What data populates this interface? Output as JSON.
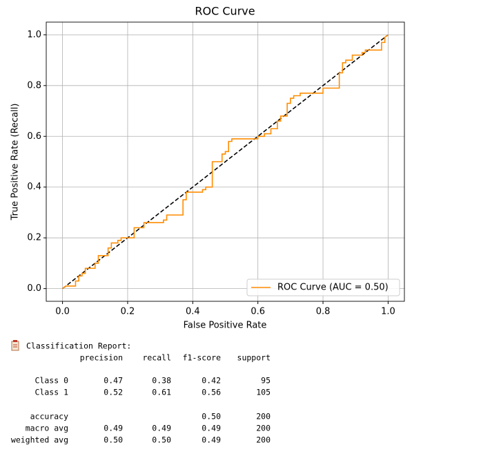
{
  "chart_data": {
    "type": "line",
    "title": "ROC Curve",
    "xlabel": "False Positive Rate",
    "ylabel": "True Positive Rate (Recall)",
    "xlim": [
      -0.05,
      1.05
    ],
    "ylim": [
      -0.05,
      1.05
    ],
    "xticks": [
      {
        "value": 0,
        "label": "0.0"
      },
      0.2,
      0.4,
      0.6,
      0.8,
      {
        "value": 1,
        "label": "1.0"
      }
    ],
    "yticks": [
      {
        "value": 0,
        "label": "0.0"
      },
      0.2,
      0.4,
      0.6,
      0.8,
      {
        "value": 1,
        "label": "1.0"
      }
    ],
    "grid": true,
    "legend": "lower right",
    "series": [
      {
        "name": "ROC Curve (AUC = 0.50)",
        "color": "#ff8c00",
        "linestyle": "solid",
        "x": [
          0,
          0.01,
          0.04,
          0.04,
          0.05,
          0.05,
          0.06,
          0.06,
          0.07,
          0.07,
          0.1,
          0.1,
          0.11,
          0.11,
          0.14,
          0.14,
          0.15,
          0.15,
          0.17,
          0.17,
          0.18,
          0.18,
          0.22,
          0.22,
          0.25,
          0.25,
          0.31,
          0.31,
          0.32,
          0.32,
          0.37,
          0.37,
          0.38,
          0.38,
          0.43,
          0.43,
          0.44,
          0.44,
          0.46,
          0.46,
          0.49,
          0.49,
          0.5,
          0.5,
          0.51,
          0.51,
          0.52,
          0.52,
          0.6,
          0.6,
          0.62,
          0.62,
          0.64,
          0.64,
          0.66,
          0.66,
          0.67,
          0.67,
          0.69,
          0.69,
          0.7,
          0.7,
          0.71,
          0.71,
          0.73,
          0.73,
          0.8,
          0.8,
          0.85,
          0.85,
          0.86,
          0.86,
          0.87,
          0.87,
          0.89,
          0.89,
          0.92,
          0.92,
          0.93,
          0.93,
          0.98,
          0.98,
          0.99,
          0.99,
          1
        ],
        "values": [
          0,
          0.01,
          0.01,
          0.03,
          0.03,
          0.05,
          0.05,
          0.06,
          0.06,
          0.08,
          0.08,
          0.1,
          0.1,
          0.13,
          0.13,
          0.16,
          0.16,
          0.18,
          0.18,
          0.19,
          0.19,
          0.2,
          0.2,
          0.24,
          0.24,
          0.26,
          0.26,
          0.27,
          0.27,
          0.29,
          0.29,
          0.35,
          0.35,
          0.38,
          0.38,
          0.39,
          0.39,
          0.4,
          0.4,
          0.5,
          0.5,
          0.53,
          0.53,
          0.54,
          0.54,
          0.58,
          0.58,
          0.59,
          0.59,
          0.6,
          0.6,
          0.61,
          0.61,
          0.63,
          0.63,
          0.66,
          0.66,
          0.68,
          0.68,
          0.73,
          0.73,
          0.75,
          0.75,
          0.76,
          0.76,
          0.77,
          0.77,
          0.79,
          0.79,
          0.85,
          0.85,
          0.89,
          0.89,
          0.9,
          0.9,
          0.92,
          0.92,
          0.93,
          0.93,
          0.94,
          0.94,
          0.97,
          0.97,
          0.99,
          1
        ]
      },
      {
        "color": "#000000",
        "linestyle": "dashed",
        "x": [
          0,
          1
        ],
        "values": [
          0,
          1
        ]
      }
    ]
  },
  "report": {
    "title": "Classification Report:",
    "columns": [
      "precision",
      "recall",
      "f1-score",
      "support"
    ],
    "rows": [
      {
        "label": "Class 0",
        "cells": [
          "0.47",
          "0.38",
          "0.42",
          "95"
        ]
      },
      {
        "label": "Class 1",
        "cells": [
          "0.52",
          "0.61",
          "0.56",
          "105"
        ]
      },
      {
        "label": "accuracy",
        "cells": [
          null,
          null,
          "0.50",
          "200"
        ]
      },
      {
        "label": "macro avg",
        "cells": [
          "0.49",
          "0.49",
          "0.49",
          "200"
        ]
      },
      {
        "label": "weighted avg",
        "cells": [
          "0.50",
          "0.50",
          "0.49",
          "200"
        ]
      }
    ]
  }
}
